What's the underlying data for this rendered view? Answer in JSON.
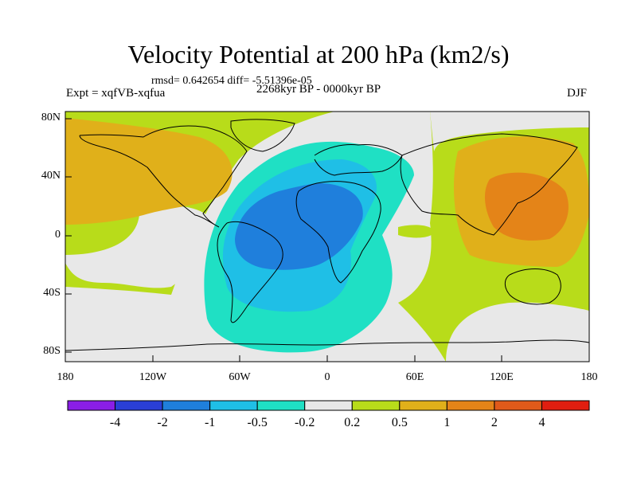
{
  "title": "Velocity Potential at 200 hPa (km2/s)",
  "stats": "rmsd= 0.642654  diff= -5.51396e-05",
  "experiment": "Expt = xqfVB-xqfua",
  "period": "2268kyr BP - 0000kyr BP",
  "season": "DJF",
  "lat_labels": [
    "80N",
    "40N",
    "0",
    "40S",
    "80S"
  ],
  "lon_labels": [
    "180",
    "120W",
    "60W",
    "0",
    "60E",
    "120E",
    "180"
  ],
  "colorbar": {
    "labels": [
      "-4",
      "-2",
      "-1",
      "-0.5",
      "-0.2",
      "0.2",
      "0.5",
      "1",
      "2",
      "4"
    ],
    "colors": [
      "#8a1ee6",
      "#2a3fd6",
      "#1f7fdc",
      "#1fbfe6",
      "#1fe0c4",
      "#e8e8e8",
      "#b8dc1a",
      "#e0b01a",
      "#e48418",
      "#e05a1a",
      "#e01e10"
    ]
  },
  "colors": {
    "neutral": "#e8e8e8",
    "coast": "#000000"
  }
}
